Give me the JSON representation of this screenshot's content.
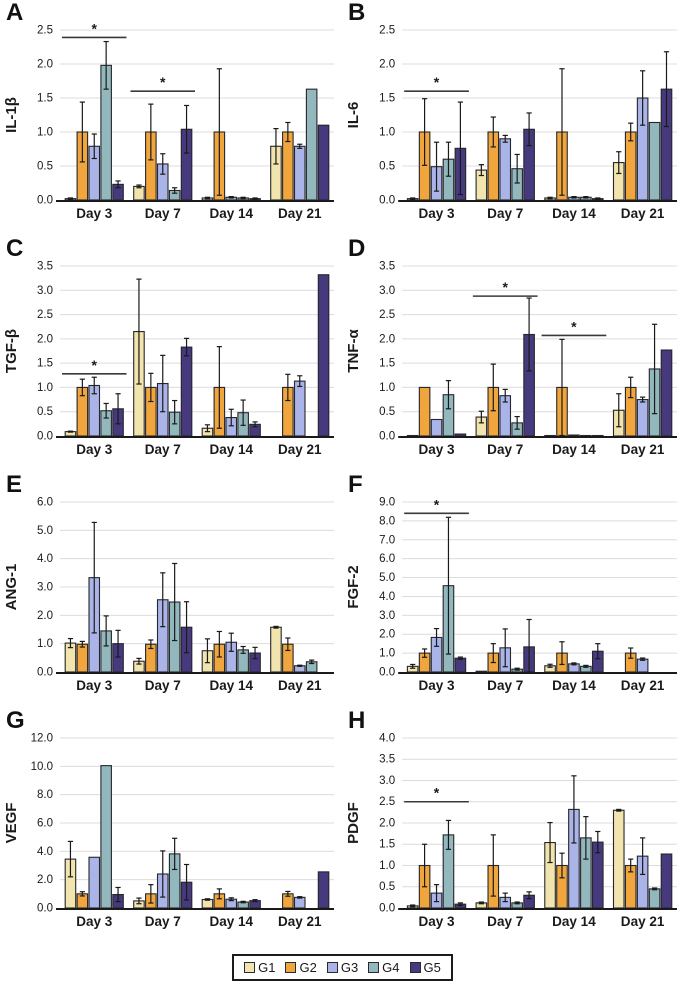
{
  "figure_title": "",
  "legend": {
    "items": [
      {
        "label": "G1",
        "color": "#F1E4AC"
      },
      {
        "label": "G2",
        "color": "#F0A63C"
      },
      {
        "label": "G3",
        "color": "#AAB4E8"
      },
      {
        "label": "G4",
        "color": "#92B8BD"
      },
      {
        "label": "G5",
        "color": "#46397E"
      }
    ]
  },
  "style": {
    "bar_stroke": "#26262b",
    "grid_color": "#dcdcdc",
    "axis_color": "#1a1a1a",
    "error_color": "#1a1a1a",
    "sig_color": "#3a3a3a",
    "text_color": "#1a1a1a"
  },
  "chart_data": [
    {
      "type": "bar",
      "panel": "A",
      "ylabel": "IL-1β",
      "ylim": [
        0,
        2.5
      ],
      "ytick_step": 0.5,
      "categories": [
        "Day 3",
        "Day 7",
        "Day 14",
        "Day 21"
      ],
      "series": [
        {
          "name": "G1",
          "values": [
            0.02,
            0.2,
            0.03,
            0.79
          ],
          "errors": [
            0.01,
            0.02,
            0.01,
            0.26
          ]
        },
        {
          "name": "G2",
          "values": [
            1.0,
            1.0,
            1.0,
            1.0
          ],
          "errors": [
            0.44,
            0.41,
            0.93,
            0.14
          ]
        },
        {
          "name": "G3",
          "values": [
            0.79,
            0.53,
            0.04,
            0.79
          ],
          "errors": [
            0.18,
            0.15,
            0.01,
            0.03
          ]
        },
        {
          "name": "G4",
          "values": [
            1.98,
            0.14,
            0.03,
            1.63
          ],
          "errors": [
            0.35,
            0.04,
            0.01,
            0
          ]
        },
        {
          "name": "G5",
          "values": [
            0.23,
            1.04,
            0.02,
            1.1
          ],
          "errors": [
            0.05,
            0.35,
            0.01,
            0
          ]
        }
      ],
      "sig_lines": [
        {
          "group_index": 0,
          "y": 2.39,
          "label": "*"
        },
        {
          "group_index": 1,
          "y": 1.6,
          "label": "*"
        }
      ]
    },
    {
      "type": "bar",
      "panel": "B",
      "ylabel": "IL-6",
      "ylim": [
        0,
        2.5
      ],
      "ytick_step": 0.5,
      "categories": [
        "Day 3",
        "Day 7",
        "Day 14",
        "Day 21"
      ],
      "series": [
        {
          "name": "G1",
          "values": [
            0.02,
            0.44,
            0.03,
            0.55
          ],
          "errors": [
            0.01,
            0.08,
            0.01,
            0.16
          ]
        },
        {
          "name": "G2",
          "values": [
            1.0,
            1.0,
            1.0,
            1.0
          ],
          "errors": [
            0.49,
            0.22,
            0.93,
            0.13
          ]
        },
        {
          "name": "G3",
          "values": [
            0.49,
            0.9,
            0.04,
            1.5
          ],
          "errors": [
            0.36,
            0.05,
            0.01,
            0.4
          ]
        },
        {
          "name": "G4",
          "values": [
            0.6,
            0.46,
            0.04,
            1.14
          ],
          "errors": [
            0.25,
            0.21,
            0.01,
            0
          ]
        },
        {
          "name": "G5",
          "values": [
            0.76,
            1.04,
            0.02,
            1.63
          ],
          "errors": [
            0.68,
            0.24,
            0.01,
            0.55
          ]
        }
      ],
      "sig_lines": [
        {
          "group_index": 0,
          "y": 1.6,
          "label": "*"
        }
      ]
    },
    {
      "type": "bar",
      "panel": "C",
      "ylabel": "TGF-β",
      "ylim": [
        0,
        3.5
      ],
      "ytick_step": 0.5,
      "categories": [
        "Day 3",
        "Day 7",
        "Day 14",
        "Day 21"
      ],
      "series": [
        {
          "name": "G1",
          "values": [
            0.09,
            2.15,
            0.16,
            0
          ],
          "errors": [
            0.01,
            1.08,
            0.07,
            0
          ]
        },
        {
          "name": "G2",
          "values": [
            1.0,
            1.0,
            1.0,
            1.0
          ],
          "errors": [
            0.17,
            0.29,
            0.84,
            0.27
          ]
        },
        {
          "name": "G3",
          "values": [
            1.04,
            1.08,
            0.38,
            1.13
          ],
          "errors": [
            0.17,
            0.58,
            0.17,
            0.11
          ]
        },
        {
          "name": "G4",
          "values": [
            0.52,
            0.49,
            0.48,
            0
          ],
          "errors": [
            0.15,
            0.24,
            0.26,
            0
          ]
        },
        {
          "name": "G5",
          "values": [
            0.56,
            1.83,
            0.24,
            3.32
          ],
          "errors": [
            0.31,
            0.18,
            0.05,
            0
          ]
        }
      ],
      "sig_lines": [
        {
          "group_index": 0,
          "y": 1.28,
          "label": "*"
        }
      ]
    },
    {
      "type": "bar",
      "panel": "D",
      "ylabel": "TNF-α",
      "ylim": [
        0,
        3.5
      ],
      "ytick_step": 0.5,
      "categories": [
        "Day 3",
        "Day 7",
        "Day 14",
        "Day 21"
      ],
      "series": [
        {
          "name": "G1",
          "values": [
            0.01,
            0.39,
            0.01,
            0.53
          ],
          "errors": [
            0,
            0.12,
            0,
            0.34
          ]
        },
        {
          "name": "G2",
          "values": [
            1.0,
            1.0,
            1.0,
            1.0
          ],
          "errors": [
            0,
            0.48,
            0.99,
            0.21
          ]
        },
        {
          "name": "G3",
          "values": [
            0.34,
            0.83,
            0.02,
            0.75
          ],
          "errors": [
            0,
            0.13,
            0,
            0.05
          ]
        },
        {
          "name": "G4",
          "values": [
            0.85,
            0.27,
            0.01,
            1.38
          ],
          "errors": [
            0.29,
            0.13,
            0,
            0.92
          ]
        },
        {
          "name": "G5",
          "values": [
            0.04,
            2.09,
            0.01,
            1.77
          ],
          "errors": [
            0,
            0.75,
            0,
            0
          ]
        }
      ],
      "sig_lines": [
        {
          "group_index": 1,
          "y": 2.88,
          "label": "*"
        },
        {
          "group_index": 2,
          "y": 2.07,
          "label": "*"
        }
      ]
    },
    {
      "type": "bar",
      "panel": "E",
      "ylabel": "ANG-1",
      "ylim": [
        0,
        6.0
      ],
      "ytick_step": 1.0,
      "categories": [
        "Day 3",
        "Day 7",
        "Day 14",
        "Day 21"
      ],
      "series": [
        {
          "name": "G1",
          "values": [
            1.02,
            0.38,
            0.75,
            1.58
          ],
          "errors": [
            0.16,
            0.1,
            0.42,
            0.03
          ]
        },
        {
          "name": "G2",
          "values": [
            0.98,
            0.98,
            0.98,
            0.98
          ],
          "errors": [
            0.1,
            0.15,
            0.45,
            0.22
          ]
        },
        {
          "name": "G3",
          "values": [
            3.33,
            2.55,
            1.05,
            0.22
          ],
          "errors": [
            1.95,
            0.95,
            0.32,
            0.02
          ]
        },
        {
          "name": "G4",
          "values": [
            1.45,
            2.47,
            0.78,
            0.36
          ],
          "errors": [
            0.53,
            1.36,
            0.12,
            0.06
          ]
        },
        {
          "name": "G5",
          "values": [
            1.0,
            1.58,
            0.67,
            0
          ],
          "errors": [
            0.47,
            0.9,
            0.2,
            0
          ]
        }
      ],
      "sig_lines": []
    },
    {
      "type": "bar",
      "panel": "F",
      "ylabel": "FGF-2",
      "ylim": [
        0,
        9.0
      ],
      "ytick_step": 1.0,
      "categories": [
        "Day 3",
        "Day 7",
        "Day 14",
        "Day 21"
      ],
      "series": [
        {
          "name": "G1",
          "values": [
            0.3,
            0.04,
            0.33,
            0
          ],
          "errors": [
            0.1,
            0,
            0.08,
            0
          ]
        },
        {
          "name": "G2",
          "values": [
            1.0,
            1.0,
            1.0,
            1.0
          ],
          "errors": [
            0.22,
            0.5,
            0.6,
            0.27
          ]
        },
        {
          "name": "G3",
          "values": [
            1.83,
            1.28,
            0.43,
            0.68
          ],
          "errors": [
            0.47,
            1.0,
            0.05,
            0.06
          ]
        },
        {
          "name": "G4",
          "values": [
            4.57,
            0.15,
            0.3,
            0
          ],
          "errors": [
            3.62,
            0.05,
            0.05,
            0
          ]
        },
        {
          "name": "G5",
          "values": [
            0.73,
            1.33,
            1.1,
            0
          ],
          "errors": [
            0.06,
            1.45,
            0.4,
            0
          ]
        }
      ],
      "sig_lines": [
        {
          "group_index": 0,
          "y": 8.4,
          "label": "*"
        }
      ]
    },
    {
      "type": "bar",
      "panel": "G",
      "ylabel": "VEGF",
      "ylim": [
        0,
        12.0
      ],
      "ytick_step": 2.0,
      "categories": [
        "Day 3",
        "Day 7",
        "Day 14",
        "Day 21"
      ],
      "series": [
        {
          "name": "G1",
          "values": [
            3.45,
            0.5,
            0.6,
            0
          ],
          "errors": [
            1.25,
            0.2,
            0.05,
            0
          ]
        },
        {
          "name": "G2",
          "values": [
            1.0,
            1.0,
            1.0,
            1.0
          ],
          "errors": [
            0.15,
            0.65,
            0.35,
            0.17
          ]
        },
        {
          "name": "G3",
          "values": [
            3.58,
            2.4,
            0.62,
            0.75
          ],
          "errors": [
            0,
            1.63,
            0.1,
            0.05
          ]
        },
        {
          "name": "G4",
          "values": [
            10.05,
            3.82,
            0.42,
            0
          ],
          "errors": [
            0,
            1.1,
            0.05,
            0
          ]
        },
        {
          "name": "G5",
          "values": [
            0.95,
            1.82,
            0.52,
            2.55
          ],
          "errors": [
            0.5,
            1.25,
            0.07,
            0
          ]
        }
      ],
      "sig_lines": []
    },
    {
      "type": "bar",
      "panel": "H",
      "ylabel": "PDGF",
      "ylim": [
        0,
        4.0
      ],
      "ytick_step": 0.5,
      "categories": [
        "Day 3",
        "Day 7",
        "Day 14",
        "Day 21"
      ],
      "series": [
        {
          "name": "G1",
          "values": [
            0.05,
            0.12,
            1.54,
            2.3
          ],
          "errors": [
            0.02,
            0.02,
            0.47,
            0.02
          ]
        },
        {
          "name": "G2",
          "values": [
            1.0,
            1.0,
            1.0,
            1.0
          ],
          "errors": [
            0.5,
            0.72,
            0.29,
            0.15
          ]
        },
        {
          "name": "G3",
          "values": [
            0.35,
            0.25,
            2.32,
            1.22
          ],
          "errors": [
            0.2,
            0.1,
            0.79,
            0.43
          ]
        },
        {
          "name": "G4",
          "values": [
            1.72,
            0.12,
            1.65,
            0.45
          ],
          "errors": [
            0.34,
            0.02,
            0.5,
            0.02
          ]
        },
        {
          "name": "G5",
          "values": [
            0.09,
            0.3,
            1.55,
            1.27
          ],
          "errors": [
            0.03,
            0.08,
            0.25,
            0
          ]
        }
      ],
      "sig_lines": [
        {
          "group_index": 0,
          "y": 2.5,
          "label": "*"
        }
      ]
    }
  ]
}
